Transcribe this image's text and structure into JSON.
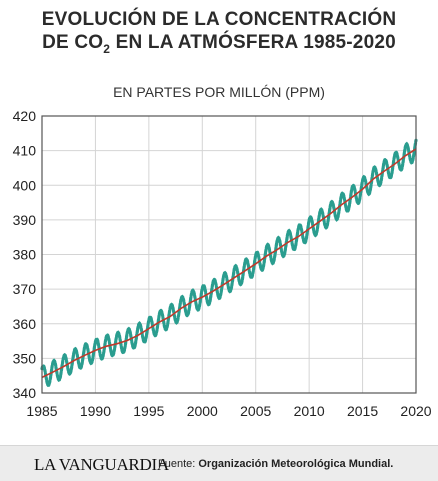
{
  "header": {
    "title_line1": "EVOLUCIÓN DE LA CONCENTRACIÓN",
    "title_line2_pre": "DE CO",
    "title_line2_sub": "2",
    "title_line2_post": " EN LA ATMÓSFERA 1985-2020",
    "subtitle": "EN PARTES POR MILLÓN (PPM)"
  },
  "footer": {
    "logo": "LA VANGUARDIA",
    "source_label": "Fuente:",
    "source_name": "Organización Meteorológica Mundial."
  },
  "colors": {
    "trend": "#c0392b",
    "monthly": "#2a9d8f",
    "grid": "#d4d4d4",
    "axis": "#555555"
  },
  "chart_data": {
    "type": "line",
    "title": "",
    "xlabel": "",
    "ylabel": "",
    "xlim": [
      1985,
      2020
    ],
    "ylim": [
      340,
      420
    ],
    "x_ticks": [
      1985,
      1990,
      1995,
      2000,
      2005,
      2010,
      2015,
      2020
    ],
    "y_ticks": [
      340,
      350,
      360,
      370,
      380,
      390,
      400,
      410,
      420
    ],
    "grid": true,
    "series": [
      {
        "role": "trend",
        "x": [
          1985,
          1986,
          1987,
          1988,
          1989,
          1990,
          1991,
          1992,
          1993,
          1994,
          1995,
          1996,
          1997,
          1998,
          1999,
          2000,
          2001,
          2002,
          2003,
          2004,
          2005,
          2006,
          2007,
          2008,
          2009,
          2010,
          2011,
          2012,
          2013,
          2014,
          2015,
          2016,
          2017,
          2018,
          2019,
          2020
        ],
        "values": [
          344.5,
          346.0,
          347.6,
          349.4,
          350.9,
          352.3,
          353.5,
          354.2,
          355.2,
          356.7,
          358.6,
          360.5,
          362.1,
          364.4,
          366.3,
          367.7,
          369.4,
          371.3,
          373.3,
          375.3,
          377.3,
          379.5,
          381.4,
          383.5,
          385.2,
          387.4,
          389.6,
          391.8,
          394.3,
          396.5,
          398.9,
          401.8,
          404.0,
          406.1,
          408.5,
          410.5
        ]
      },
      {
        "role": "monthly",
        "seasonal_amplitude": 3.2
      }
    ]
  }
}
